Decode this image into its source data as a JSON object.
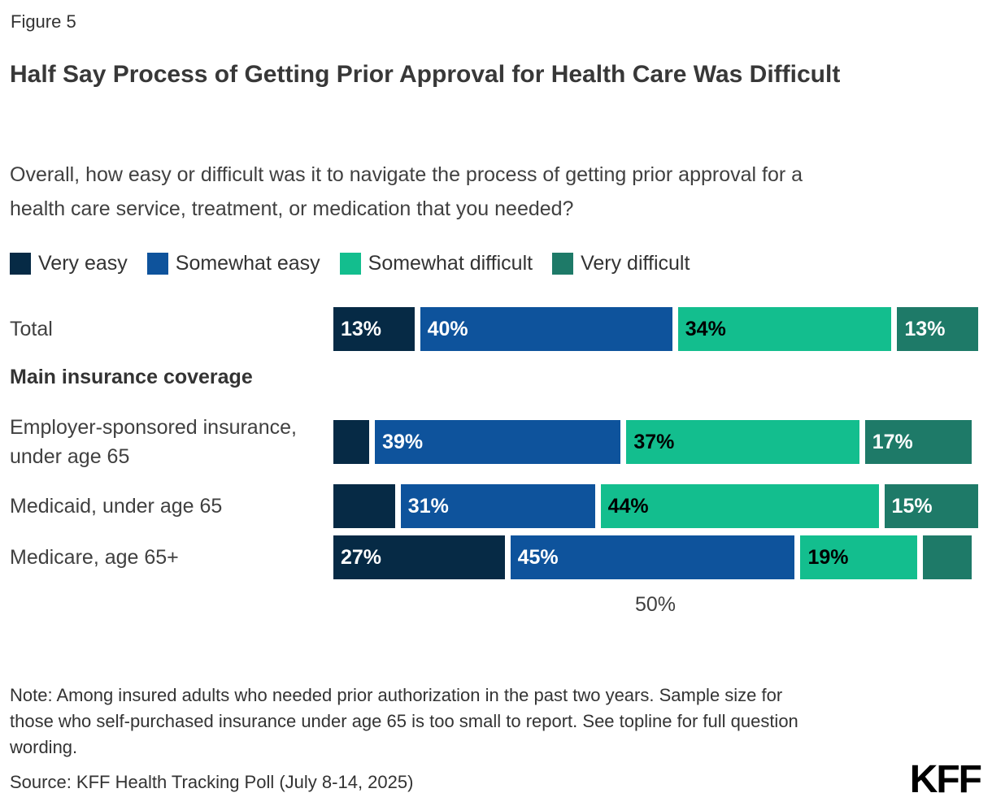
{
  "figure_label": "Figure 5",
  "title": "Half Say Process of Getting Prior Approval for Health Care Was Difficult",
  "subtitle": "Overall, how easy or difficult was it to navigate the process of getting prior approval for a health care service, treatment, or medication that you needed?",
  "chart_data": {
    "type": "bar",
    "orientation": "horizontal",
    "stacked": true,
    "x_range": [
      0,
      100
    ],
    "axis_tick": {
      "label": "50%",
      "value": 50
    },
    "series": [
      {
        "name": "Very easy",
        "color": "#062A45",
        "label_color": "#FFFFFF"
      },
      {
        "name": "Somewhat easy",
        "color": "#0E539C",
        "label_color": "#FFFFFF"
      },
      {
        "name": "Somewhat difficult",
        "color": "#13BE8E",
        "label_color": "#000000"
      },
      {
        "name": "Very difficult",
        "color": "#1E7A68",
        "label_color": "#FFFFFF"
      }
    ],
    "section_header": "Main insurance coverage",
    "rows": [
      {
        "category": "Total",
        "values": [
          13,
          40,
          34,
          13
        ],
        "labels": [
          "13%",
          "40%",
          "34%",
          "13%"
        ]
      },
      {
        "category": "Employer-sponsored insurance, under age 65",
        "values": [
          6,
          39,
          37,
          17
        ],
        "labels": [
          null,
          "39%",
          "37%",
          "17%"
        ]
      },
      {
        "category": "Medicaid, under age 65",
        "values": [
          10,
          31,
          44,
          15
        ],
        "labels": [
          null,
          "31%",
          "44%",
          "15%"
        ]
      },
      {
        "category": "Medicare, age 65+",
        "values": [
          27,
          45,
          19,
          8
        ],
        "labels": [
          "27%",
          "45%",
          "19%",
          null
        ]
      }
    ]
  },
  "note": "Note: Among insured adults who needed prior authorization in the past two years. Sample size for those who self-purchased insurance under age 65 is too small to report. See topline for full question wording.",
  "source": "Source: KFF Health Tracking Poll (July 8-14, 2025)",
  "logo_text": "KFF"
}
